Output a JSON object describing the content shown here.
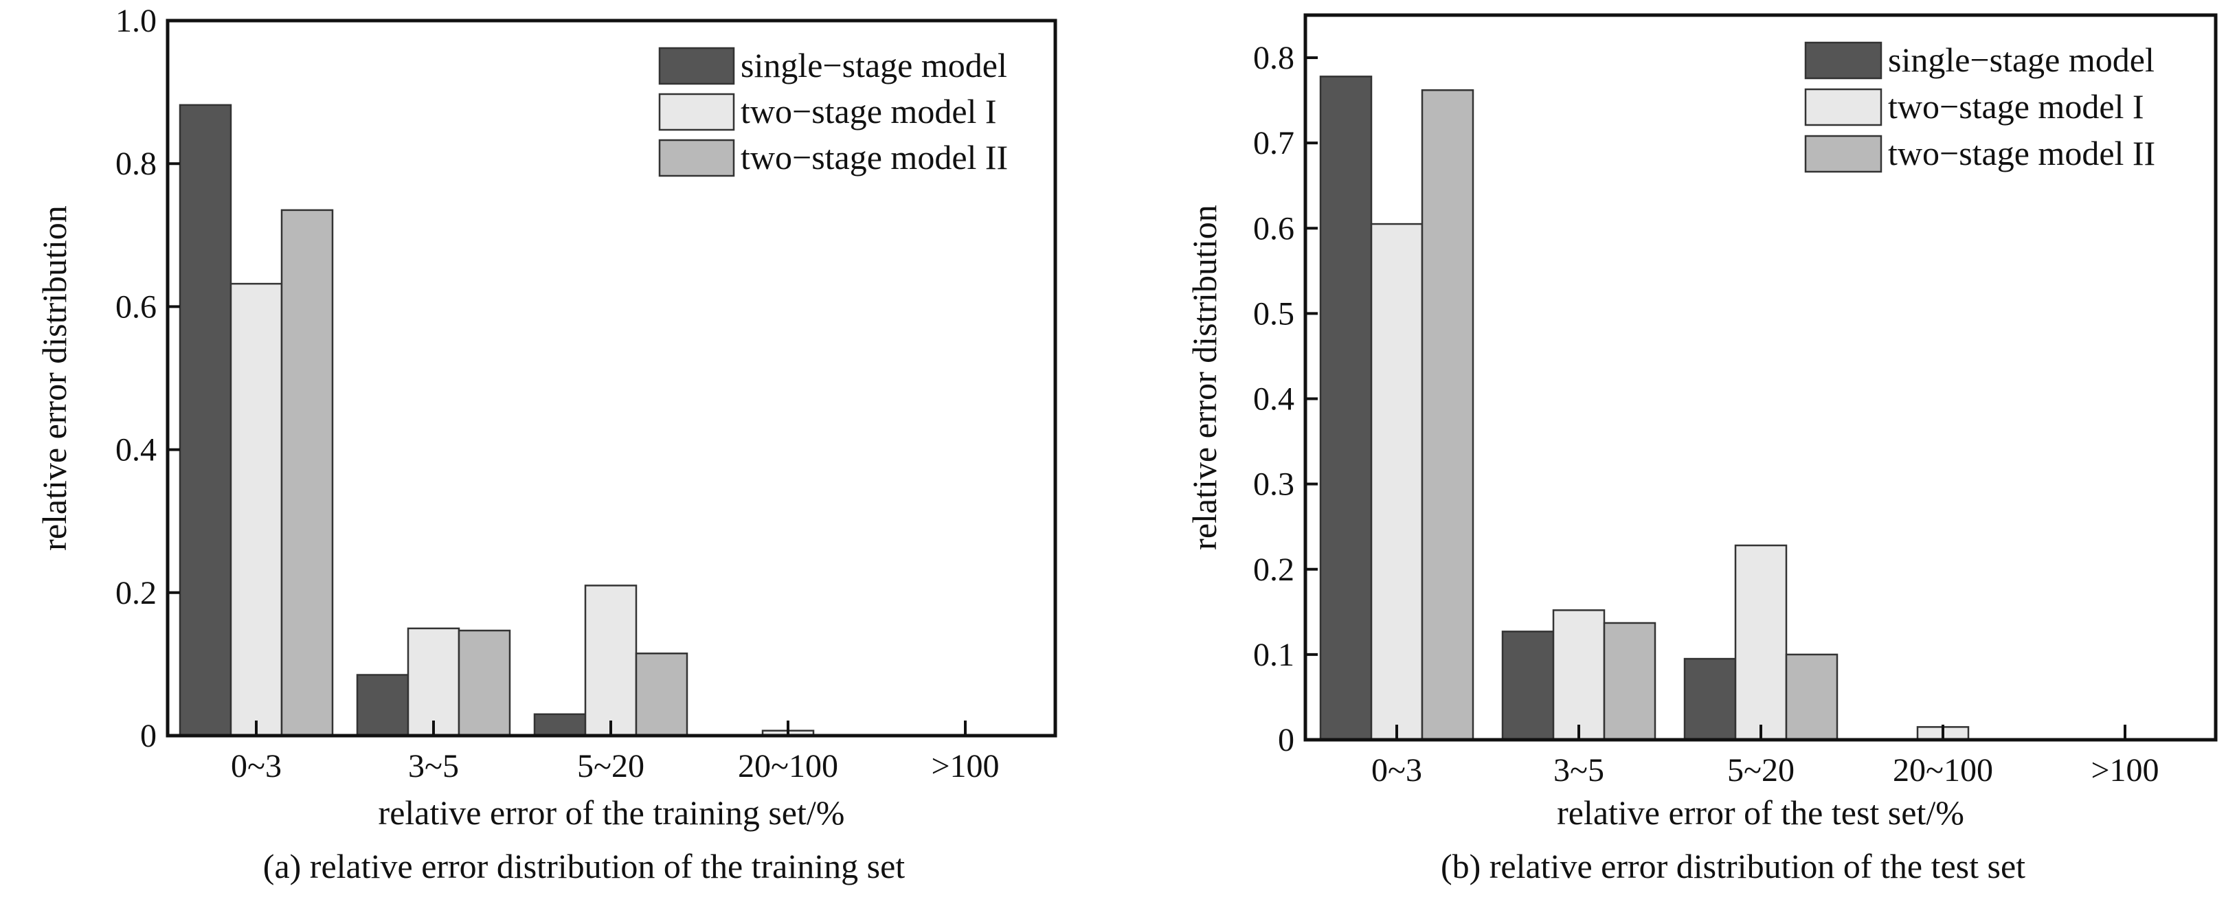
{
  "chart_data": [
    {
      "type": "bar",
      "caption": "(a)  relative error distribution of the training set",
      "xlabel": "relative error of the training set/%",
      "ylabel": "relative error distribution",
      "categories": [
        "0~3",
        "3~5",
        "5~20",
        "20~100",
        ">100"
      ],
      "ylim": [
        0,
        1.0
      ],
      "yticks": [
        0,
        0.2,
        0.4,
        0.6,
        0.8,
        1.0
      ],
      "ytick_labels": [
        "0",
        "0.2",
        "0.4",
        "0.6",
        "0.8",
        "1.0"
      ],
      "legend_position": "top-right",
      "grid": false,
      "series": [
        {
          "name": "single−stage model",
          "color": "#555555",
          "values": [
            0.882,
            0.085,
            0.03,
            0.0,
            0.0
          ]
        },
        {
          "name": "two−stage model I",
          "color": "#e8e8e8",
          "values": [
            0.632,
            0.15,
            0.21,
            0.007,
            0.0
          ]
        },
        {
          "name": "two−stage model II",
          "color": "#b9b9b9",
          "values": [
            0.735,
            0.147,
            0.115,
            0.0,
            0.0
          ]
        }
      ]
    },
    {
      "type": "bar",
      "caption": "(b)  relative error distribution of the test set",
      "xlabel": "relative error of the test set/%",
      "ylabel": "relative error distribution",
      "categories": [
        "0~3",
        "3~5",
        "5~20",
        "20~100",
        ">100"
      ],
      "ylim": [
        0,
        0.85
      ],
      "yticks": [
        0,
        0.1,
        0.2,
        0.3,
        0.4,
        0.5,
        0.6,
        0.7,
        0.8
      ],
      "ytick_labels": [
        "0",
        "0.1",
        "0.2",
        "0.3",
        "0.4",
        "0.5",
        "0.6",
        "0.7",
        "0.8"
      ],
      "legend_position": "top-right",
      "grid": false,
      "series": [
        {
          "name": "single−stage model",
          "color": "#555555",
          "values": [
            0.778,
            0.127,
            0.095,
            0.0,
            0.0
          ]
        },
        {
          "name": "two−stage model I",
          "color": "#e8e8e8",
          "values": [
            0.605,
            0.152,
            0.228,
            0.015,
            0.0
          ]
        },
        {
          "name": "two−stage model II",
          "color": "#b9b9b9",
          "values": [
            0.762,
            0.137,
            0.1,
            0.0,
            0.0
          ]
        }
      ]
    }
  ]
}
